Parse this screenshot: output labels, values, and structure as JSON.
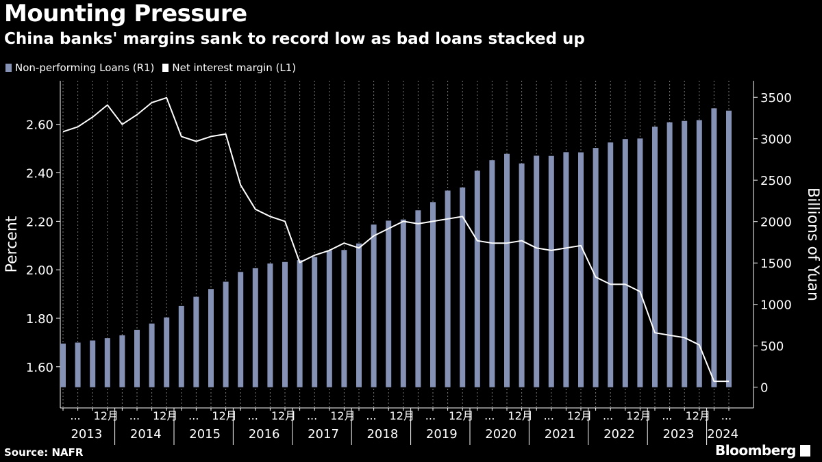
{
  "header": {
    "title": "Mounting Pressure",
    "subtitle": "China banks' margins sank to record low as bad loans stacked up"
  },
  "legend": {
    "items": [
      {
        "label": "Non-performing Loans (R1)",
        "color": "#8592b5"
      },
      {
        "label": "Net interest margin (L1)",
        "color": "#ffffff"
      }
    ]
  },
  "footer": {
    "source": "Source: NAFR",
    "brand": "Bloomberg"
  },
  "colors": {
    "background": "#000000",
    "bars": "#8592b5",
    "line": "#ffffff",
    "grid": "#7a7a7a"
  },
  "chart_data": {
    "type": "bar+line",
    "quarters": [
      "2013Q1",
      "2013Q2",
      "2013Q3",
      "2013Q4",
      "2014Q1",
      "2014Q2",
      "2014Q3",
      "2014Q4",
      "2015Q1",
      "2015Q2",
      "2015Q3",
      "2015Q4",
      "2016Q1",
      "2016Q2",
      "2016Q3",
      "2016Q4",
      "2017Q1",
      "2017Q2",
      "2017Q3",
      "2017Q4",
      "2018Q1",
      "2018Q2",
      "2018Q3",
      "2018Q4",
      "2019Q1",
      "2019Q2",
      "2019Q3",
      "2019Q4",
      "2020Q1",
      "2020Q2",
      "2020Q3",
      "2020Q4",
      "2021Q1",
      "2021Q2",
      "2021Q3",
      "2021Q4",
      "2022Q1",
      "2022Q2",
      "2022Q3",
      "2022Q4",
      "2023Q1",
      "2023Q2",
      "2023Q3",
      "2023Q4",
      "2024Q1",
      "2024Q2"
    ],
    "series": [
      {
        "name": "Non-performing Loans (R1)",
        "type": "bar",
        "axis": "right",
        "values": [
          527,
          539,
          564,
          592,
          627,
          693,
          769,
          843,
          982,
          1092,
          1186,
          1274,
          1392,
          1437,
          1494,
          1512,
          1534,
          1572,
          1652,
          1657,
          1736,
          1964,
          2011,
          2025,
          2136,
          2235,
          2374,
          2412,
          2614,
          2740,
          2818,
          2702,
          2795,
          2793,
          2838,
          2836,
          2889,
          2955,
          2996,
          3003,
          3146,
          3199,
          3215,
          3225,
          3367,
          3339
        ]
      },
      {
        "name": "Net interest margin (L1)",
        "type": "line",
        "axis": "left",
        "values": [
          2.57,
          2.59,
          2.63,
          2.68,
          2.6,
          2.64,
          2.69,
          2.71,
          2.55,
          2.53,
          2.55,
          2.56,
          2.35,
          2.25,
          2.22,
          2.2,
          2.03,
          2.06,
          2.08,
          2.11,
          2.09,
          2.14,
          2.17,
          2.2,
          2.19,
          2.2,
          2.21,
          2.22,
          2.12,
          2.11,
          2.11,
          2.12,
          2.09,
          2.08,
          2.09,
          2.1,
          1.97,
          1.94,
          1.94,
          1.91,
          1.74,
          1.73,
          1.72,
          1.69,
          1.54,
          1.54
        ]
      }
    ],
    "x_axis": {
      "quarter_tick_labels": [
        "...",
        "12月"
      ],
      "year_labels": [
        "2013",
        "2014",
        "2015",
        "2016",
        "2017",
        "2018",
        "2019",
        "2020",
        "2021",
        "2022",
        "2023",
        "2024"
      ]
    },
    "left_axis": {
      "label": "Percent",
      "ticks": [
        "1.60",
        "1.80",
        "2.00",
        "2.20",
        "2.40",
        "2.60"
      ],
      "range": [
        1.43,
        2.78
      ]
    },
    "right_axis": {
      "label": "Billions of Yuan",
      "ticks": [
        "0",
        "500",
        "1000",
        "1500",
        "2000",
        "2500",
        "3000",
        "3500"
      ],
      "range": [
        -250,
        3700
      ]
    },
    "grid": "vertical dashed per quarter",
    "legend_position": "top-left"
  }
}
